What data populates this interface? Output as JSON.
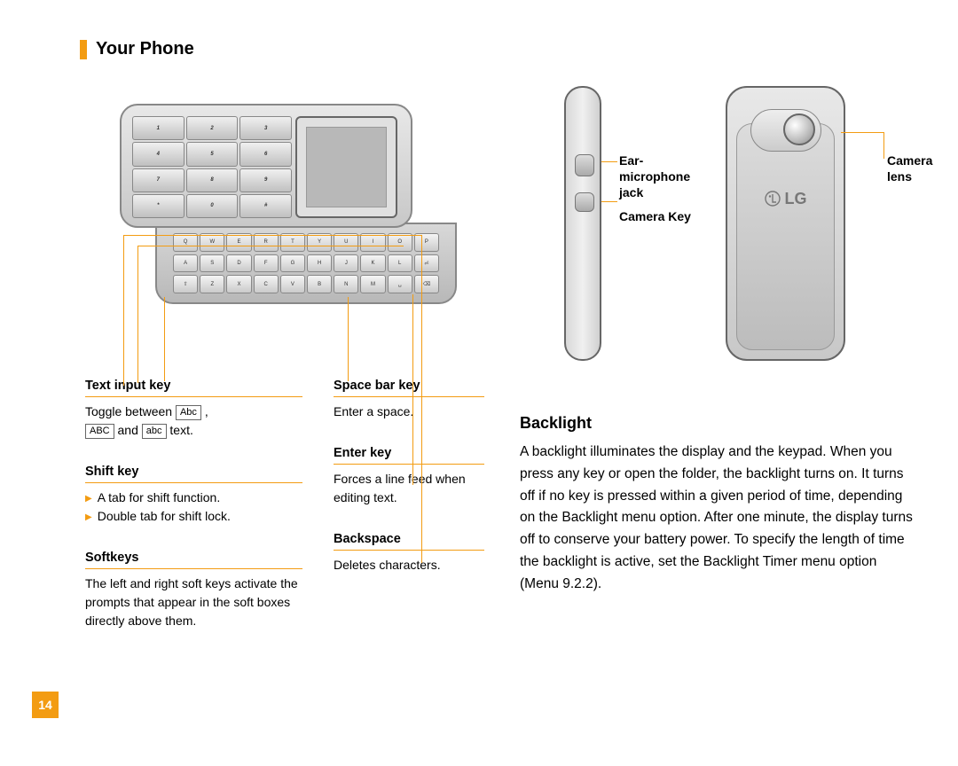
{
  "accent_color": "#f39c12",
  "header": {
    "title": "Your Phone"
  },
  "page_number": "14",
  "phone_front": {
    "numeric_rows": [
      [
        "1",
        "2",
        "3"
      ],
      [
        "4",
        "5",
        "6"
      ],
      [
        "7",
        "8",
        "9"
      ],
      [
        "*",
        "0",
        "#"
      ]
    ],
    "qwerty_rows": [
      [
        "Q",
        "W",
        "E",
        "R",
        "T",
        "Y",
        "U",
        "I",
        "O",
        "P"
      ],
      [
        "A",
        "S",
        "D",
        "F",
        "G",
        "H",
        "J",
        "K",
        "L",
        "⏎"
      ],
      [
        "⇧",
        "Z",
        "X",
        "C",
        "V",
        "B",
        "N",
        "M",
        "␣",
        "⌫"
      ]
    ]
  },
  "key_descriptions": {
    "left": [
      {
        "title": "Text input key",
        "body_prefix": "Toggle between ",
        "modes": [
          "Abc",
          "ABC",
          "abc"
        ],
        "body_mid": " and ",
        "body_suffix": " text."
      },
      {
        "title": "Shift key",
        "bullets": [
          "A tab for shift function.",
          "Double tab for shift lock."
        ]
      },
      {
        "title": "Softkeys",
        "body": "The left and right soft keys activate the prompts that appear in the soft boxes directly above them."
      }
    ],
    "right": [
      {
        "title": "Space bar key",
        "body": "Enter a space."
      },
      {
        "title": "Enter key",
        "body": "Forces a line feed when editing text."
      },
      {
        "title": "Backspace",
        "body": "Deletes characters."
      }
    ]
  },
  "side_labels": {
    "ear": "Ear-\nmicrophone\njack",
    "camera_key": "Camera Key",
    "camera_lens": "Camera\nlens"
  },
  "backlight": {
    "heading": "Backlight",
    "body": "A backlight illuminates the display and the keypad. When you press any key or open the folder, the backlight turns on. It turns off if no key is pressed within a given period of time, depending on the Backlight menu option. After one minute, the display turns off to conserve your battery power. To specify the length of time the backlight is active, set the Backlight Timer menu option (Menu 9.2.2)."
  }
}
